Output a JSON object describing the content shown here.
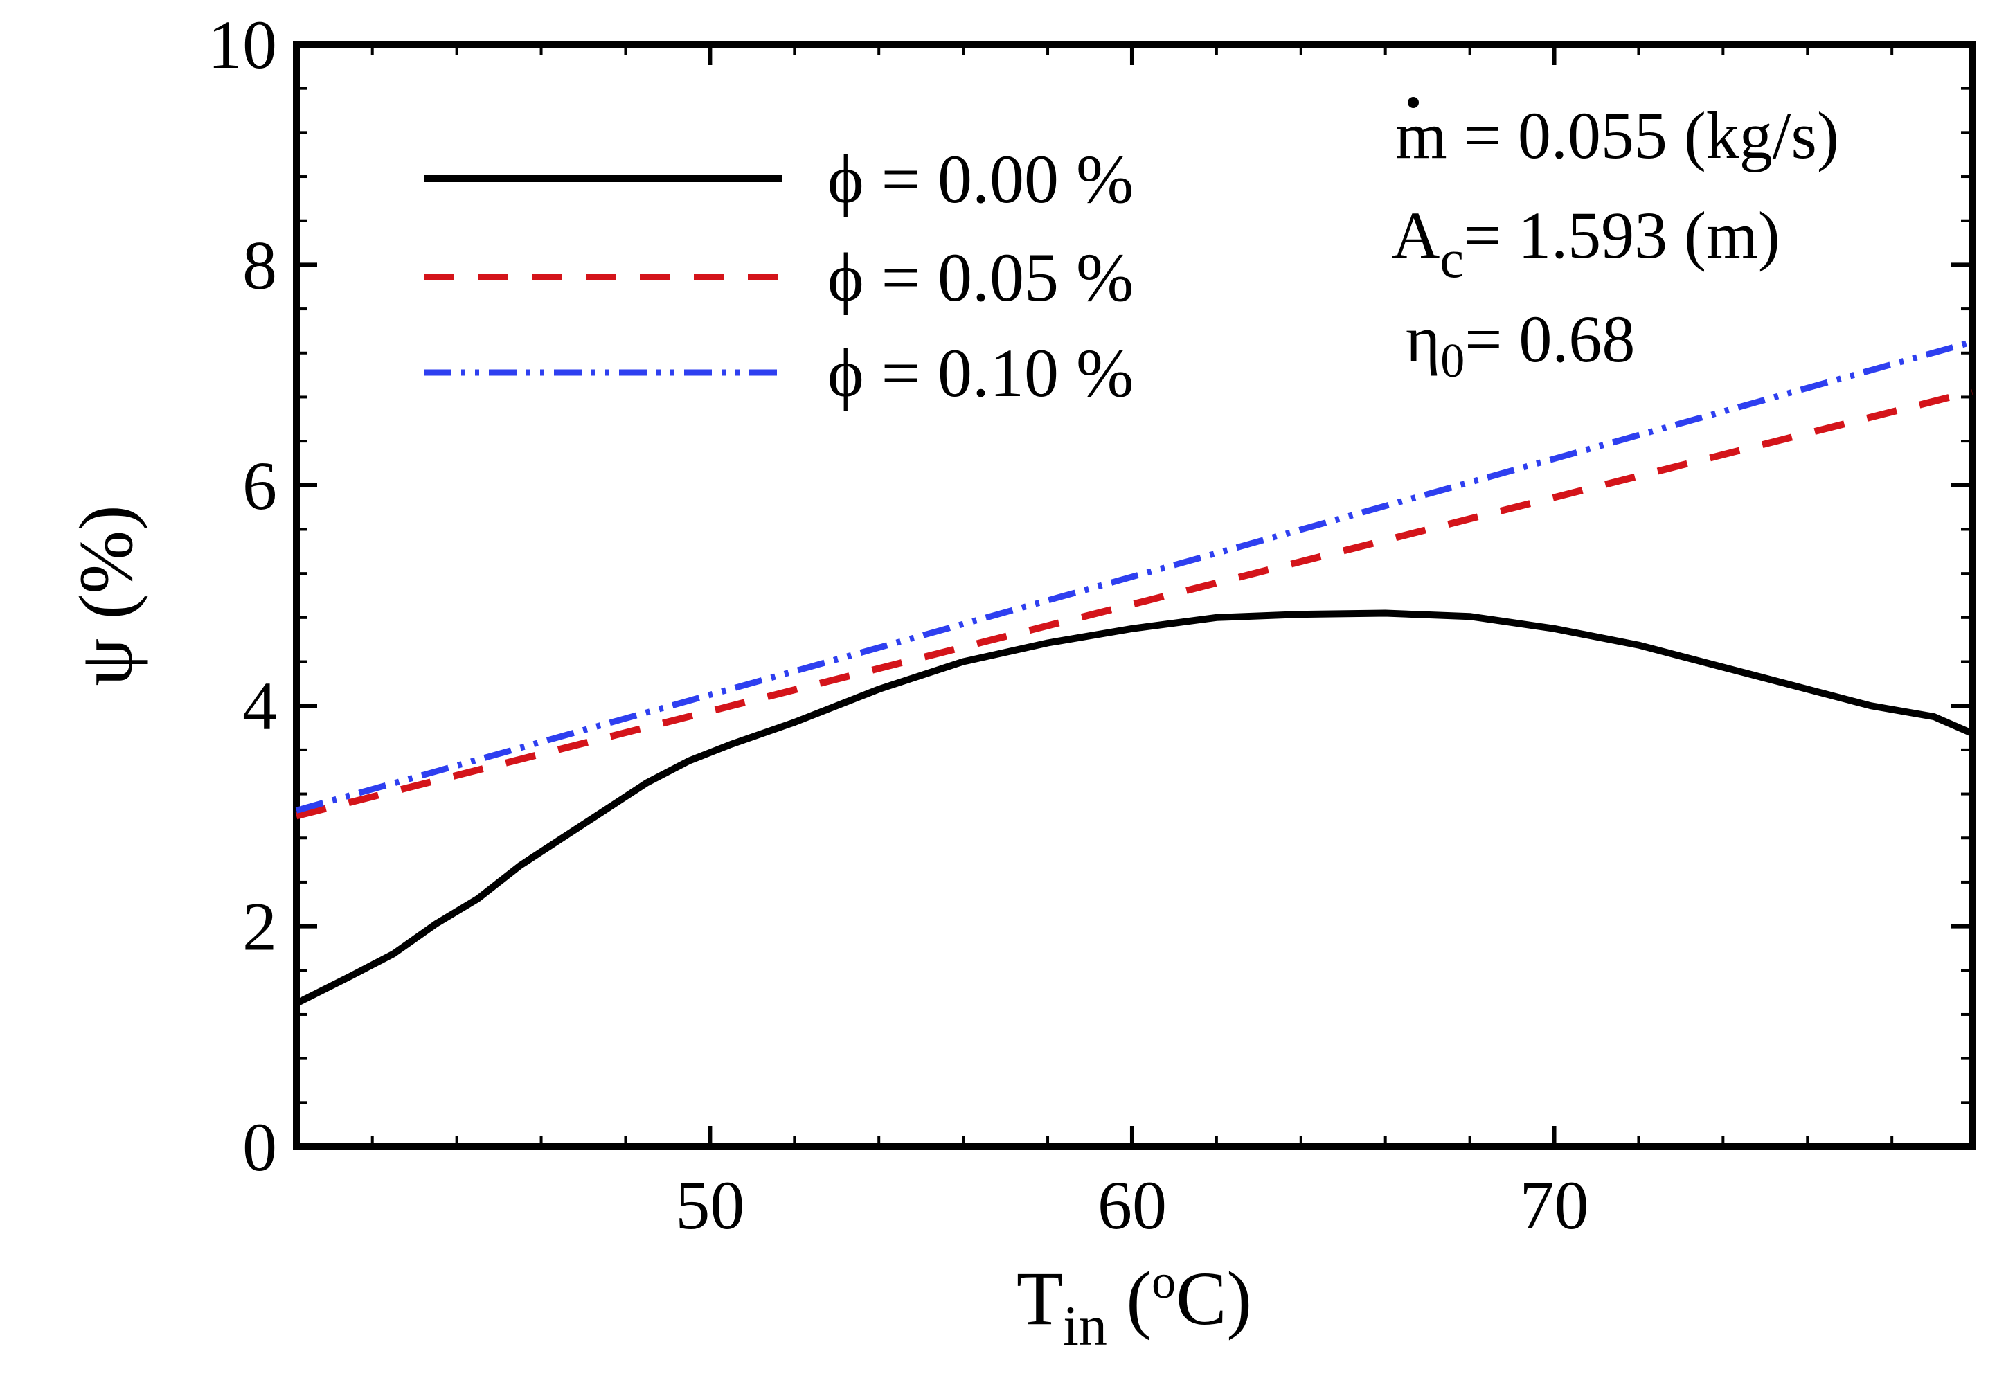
{
  "chart_data": {
    "type": "line",
    "title": "",
    "xlabel": {
      "main": "T",
      "sub": "in",
      "unit_open": " (",
      "unit_sup": "o",
      "unit_close": "C)"
    },
    "ylabel": "ψ (%)",
    "xlim": [
      40.2,
      79.9
    ],
    "ylim": [
      0,
      10
    ],
    "xticks": [
      50,
      60,
      70
    ],
    "yticks": [
      0,
      2,
      4,
      6,
      8,
      10
    ],
    "x_minor_step": 2,
    "y_minor_step": 0.4,
    "grid": false,
    "legend_position": "top-left",
    "series": [
      {
        "name": "ϕ = 0.00 %",
        "color": "#000000",
        "style": "solid",
        "x": [
          40.2,
          41.5,
          42.5,
          43.5,
          44.5,
          45.5,
          46.5,
          47.5,
          48.5,
          49.5,
          50.5,
          52,
          54,
          56,
          58,
          60,
          62,
          64,
          66,
          68,
          70,
          72,
          74,
          76,
          77.5,
          79,
          79.9
        ],
        "y": [
          1.3,
          1.55,
          1.75,
          2.02,
          2.25,
          2.55,
          2.8,
          3.05,
          3.3,
          3.5,
          3.65,
          3.85,
          4.15,
          4.4,
          4.57,
          4.7,
          4.8,
          4.83,
          4.84,
          4.81,
          4.7,
          4.55,
          4.35,
          4.15,
          4.0,
          3.9,
          3.75
        ]
      },
      {
        "name": "ϕ = 0.05 %",
        "color": "#d4141a",
        "style": "dashed",
        "x": [
          40.2,
          79.9
        ],
        "y": [
          3.0,
          6.85
        ]
      },
      {
        "name": "ϕ = 0.10 %",
        "color": "#2e3ff0",
        "style": "dash-dot-dot",
        "x": [
          40.2,
          79.9
        ],
        "y": [
          3.05,
          7.3
        ]
      }
    ],
    "annotations": [
      {
        "symbol": "m",
        "text": " = 0.055 (kg/s)"
      },
      {
        "symbol": "A",
        "sub": "c",
        "text": "= 1.593 (m)"
      },
      {
        "symbol": "η",
        "sub": "0",
        "text": "= 0.68"
      }
    ]
  }
}
